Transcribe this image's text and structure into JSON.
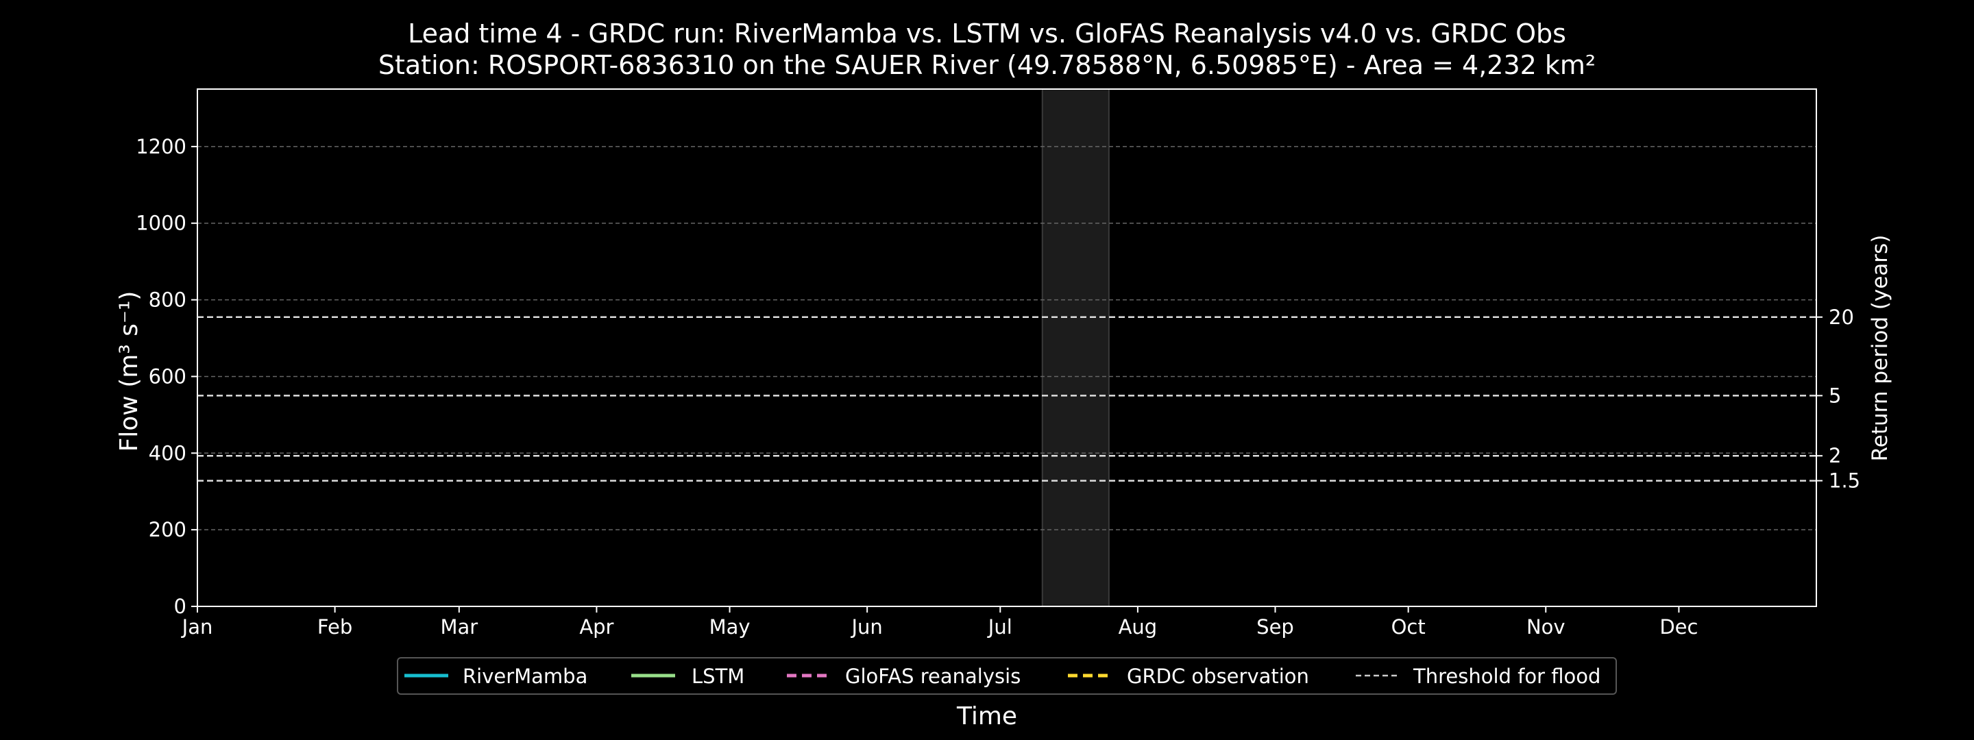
{
  "chart_data": {
    "type": "line",
    "title": "Lead time 4 - GRDC run: RiverMamba vs. LSTM vs. GloFAS Reanalysis v4.0 vs. GRDC Obs",
    "subtitle": "Station: ROSPORT-6836310 on the SAUER River (49.78588°N, 6.50985°E) - Area = 4,232 km²",
    "xlabel": "Time",
    "ylabel": "Flow (m³ s⁻¹)",
    "y2label": "Return period (years)",
    "ylim": [
      0,
      1350
    ],
    "xlim": [
      0,
      365
    ],
    "y_ticks": [
      0,
      200,
      400,
      600,
      800,
      1000,
      1200
    ],
    "grid": true,
    "x_ticks": [
      {
        "label": "Jan",
        "day": 0
      },
      {
        "label": "Feb",
        "day": 31
      },
      {
        "label": "Mar",
        "day": 59
      },
      {
        "label": "Apr",
        "day": 90
      },
      {
        "label": "May",
        "day": 120
      },
      {
        "label": "Jun",
        "day": 151
      },
      {
        "label": "Jul",
        "day": 181
      },
      {
        "label": "Aug",
        "day": 212
      },
      {
        "label": "Sep",
        "day": 243
      },
      {
        "label": "Oct",
        "day": 273
      },
      {
        "label": "Nov",
        "day": 304
      },
      {
        "label": "Dec",
        "day": 334
      }
    ],
    "thresholds": [
      {
        "label": "20",
        "value": 755
      },
      {
        "label": "5",
        "value": 550
      },
      {
        "label": "2",
        "value": 393
      },
      {
        "label": "1.5",
        "value": 328
      }
    ],
    "highlight_span": {
      "start_day": 190.5,
      "end_day": 205.5
    },
    "series": [
      {
        "name": "RiverMamba",
        "color": "#17becf",
        "style": "solid",
        "values": []
      },
      {
        "name": "LSTM",
        "color": "#98df8a",
        "style": "solid",
        "values": []
      },
      {
        "name": "GloFAS reanalysis",
        "color": "#e377c2",
        "style": "dashed",
        "values": []
      },
      {
        "name": "GRDC observation",
        "color": "#ffd92f",
        "style": "dashed",
        "values": []
      }
    ],
    "threshold_legend": {
      "name": "Threshold for flood",
      "color": "#cccccc",
      "style": "dashed"
    },
    "legend_position": "bottom-center"
  }
}
